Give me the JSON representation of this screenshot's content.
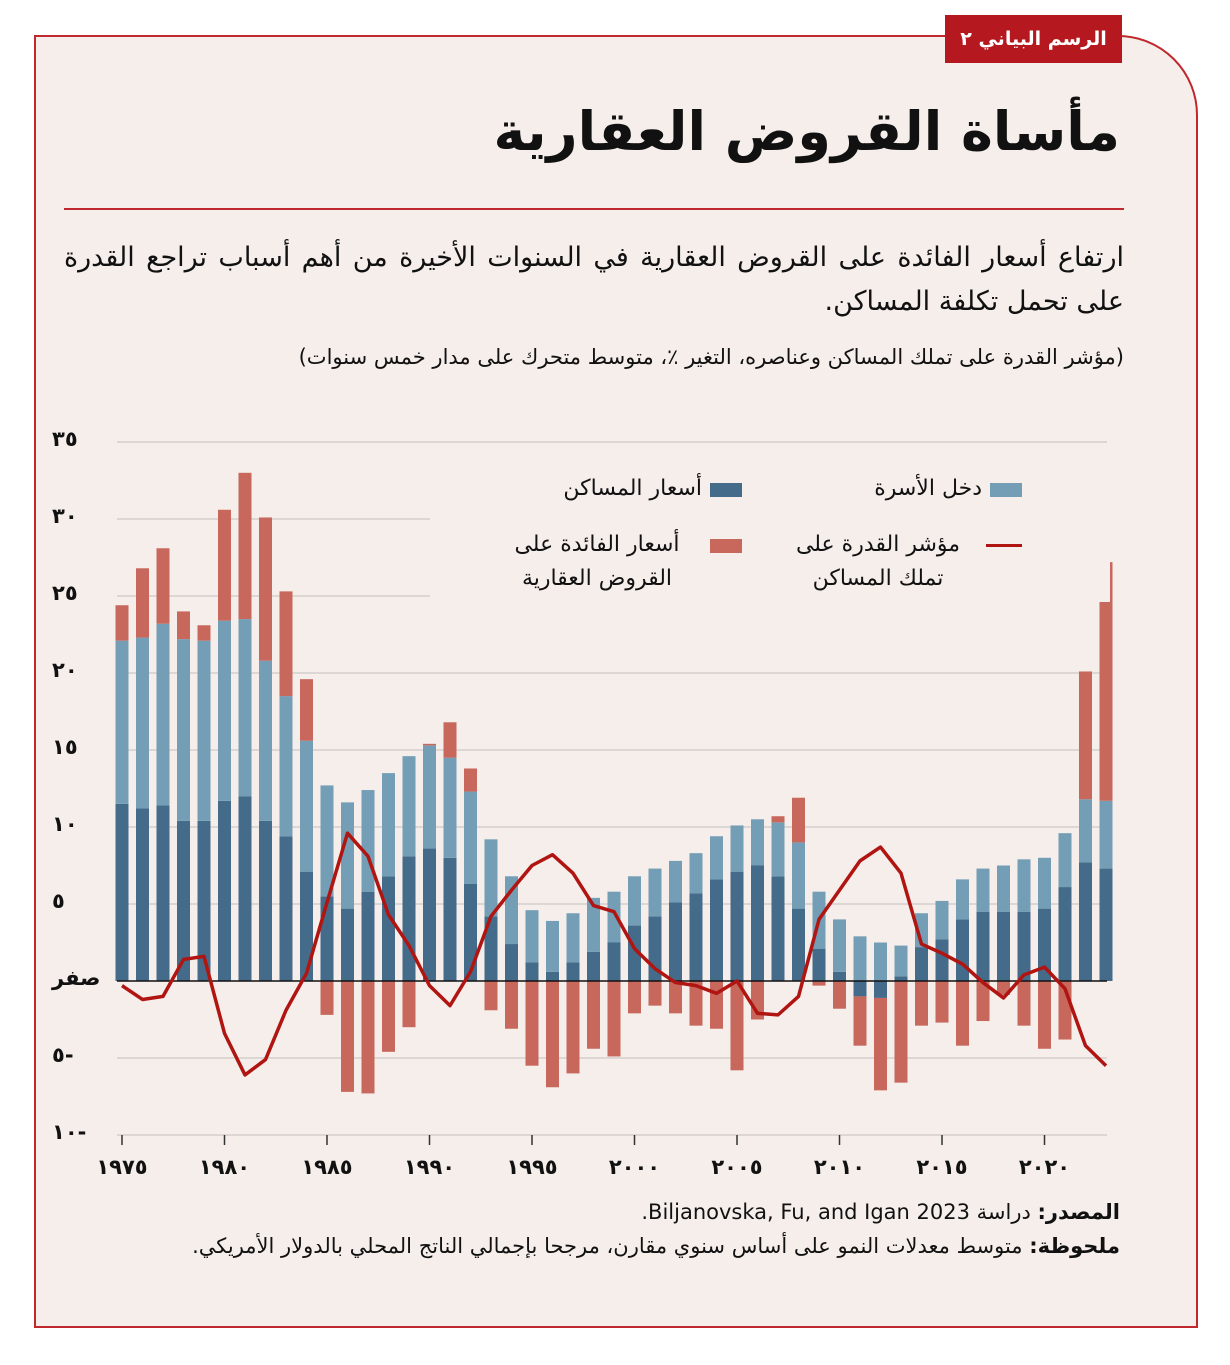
{
  "badge": "الرسم البياني ٢",
  "title": "مأساة القروض العقارية",
  "subtitle": "ارتفاع أسعار الفائدة على القروض العقارية في السنوات الأخيرة من أهم أسباب تراجع القدرة على تحمل تكلفة المساكن.",
  "unit_note": "(مؤشر القدرة على تملك المساكن وعناصره، التغير ٪، متوسط متحرك على مدار خمس سنوات)",
  "source_label": "المصدر:",
  "source_text": " دراسة Biljanovska, Fu, and Igan 2023.",
  "note_label": "ملحوظة:",
  "note_text": " متوسط معدلات النمو على أساس سنوي مقارن، مرجحا بإجمالي الناتج المحلي بالدولار الأمريكي.",
  "colors": {
    "house_prices": "#446b8a",
    "household_income": "#749eb5",
    "mortgage_rates": "#c8685c",
    "affordability": "#b01512",
    "frame": "#c0282d",
    "background": "#f5eeeb"
  },
  "chart_data": {
    "type": "bar",
    "stacked": true,
    "title": "مأساة القروض العقارية",
    "ylim": [
      -10,
      35
    ],
    "yticks": [
      35,
      30,
      25,
      20,
      15,
      10,
      5,
      0,
      -5,
      -10
    ],
    "ytick_labels": [
      "٣٥",
      "٣٠",
      "٢٥",
      "٢٠",
      "١٥",
      "١٠",
      "٥",
      "صفر",
      "٥-",
      "١٠-"
    ],
    "xticks": [
      1975,
      1980,
      1985,
      1990,
      1995,
      2000,
      2005,
      2010,
      2015,
      2020
    ],
    "xtick_labels": [
      "١٩٧٥",
      "١٩٨٠",
      "١٩٨٥",
      "١٩٩٠",
      "١٩٩٥",
      "٢٠٠٠",
      "٢٠٠٥",
      "٢٠١٠",
      "٢٠١٥",
      "٢٠٢٠"
    ],
    "grid": true,
    "legend_placement": "top",
    "x": [
      1975,
      1976,
      1977,
      1978,
      1979,
      1980,
      1981,
      1982,
      1983,
      1984,
      1985,
      1986,
      1987,
      1988,
      1989,
      1990,
      1991,
      1992,
      1993,
      1994,
      1995,
      1996,
      1997,
      1998,
      1999,
      2000,
      2001,
      2002,
      2003,
      2004,
      2005,
      2006,
      2007,
      2008,
      2009,
      2010,
      2011,
      2012,
      2013,
      2014,
      2015,
      2016,
      2017,
      2018,
      2019,
      2020,
      2021,
      2022,
      2023
    ],
    "series": [
      {
        "name": "أسعار المساكن",
        "kind": "bar",
        "color": "#446b8a",
        "values": [
          11.5,
          11.2,
          11.4,
          10.4,
          10.4,
          11.7,
          12.0,
          10.4,
          9.4,
          7.1,
          5.5,
          4.7,
          5.8,
          6.8,
          8.1,
          8.6,
          8.0,
          6.3,
          4.2,
          2.4,
          1.2,
          0.6,
          1.2,
          1.9,
          2.5,
          3.6,
          4.2,
          5.1,
          5.7,
          6.6,
          7.1,
          7.5,
          6.8,
          4.7,
          2.1,
          0.6,
          -1.0,
          -1.1,
          0.3,
          2.2,
          2.7,
          4.0,
          4.5,
          4.5,
          4.5,
          4.7,
          6.1,
          7.7,
          7.3
        ]
      },
      {
        "name": "دخل الأسرة",
        "kind": "bar",
        "color": "#749eb5",
        "values": [
          10.6,
          11.1,
          11.8,
          11.8,
          11.7,
          11.7,
          11.5,
          10.4,
          9.1,
          8.5,
          7.2,
          6.9,
          6.6,
          6.7,
          6.5,
          6.7,
          6.5,
          6.0,
          5.0,
          4.4,
          3.4,
          3.3,
          3.2,
          3.5,
          3.3,
          3.2,
          3.1,
          2.7,
          2.6,
          2.8,
          3.0,
          3.0,
          3.5,
          4.3,
          3.7,
          3.4,
          2.9,
          2.5,
          2.0,
          2.2,
          2.5,
          2.6,
          2.8,
          3.0,
          3.4,
          3.3,
          3.5,
          4.1,
          4.4
        ]
      },
      {
        "name": "أسعار الفائدة على القروض العقارية",
        "kind": "bar",
        "color": "#c8685c",
        "values": [
          2.3,
          4.5,
          4.9,
          1.8,
          1.0,
          7.2,
          9.5,
          9.3,
          6.8,
          4.0,
          -2.2,
          -7.2,
          -7.3,
          -4.6,
          -3.0,
          0.1,
          2.3,
          1.5,
          -1.9,
          -3.1,
          -5.5,
          -6.9,
          -6.0,
          -4.4,
          -4.9,
          -2.1,
          -1.6,
          -2.1,
          -2.9,
          -3.1,
          -5.8,
          -2.5,
          0.4,
          2.9,
          -0.3,
          -1.8,
          -3.2,
          -6.0,
          -6.6,
          -2.9,
          -2.7,
          -4.2,
          -2.6,
          -0.9,
          -2.9,
          -4.4,
          -3.8,
          8.3,
          15.5
        ]
      },
      {
        "name": "مؤشر القدرة على تملك المساكن",
        "kind": "line",
        "color": "#b01512",
        "values": [
          -0.3,
          -1.2,
          -1.0,
          1.4,
          1.6,
          -3.4,
          -6.1,
          -5.1,
          -1.9,
          0.5,
          5.1,
          9.6,
          8.1,
          4.3,
          2.3,
          -0.3,
          -1.6,
          0.6,
          4.2,
          5.9,
          7.5,
          8.2,
          7.0,
          4.9,
          4.5,
          2.1,
          0.8,
          -0.1,
          -0.3,
          -0.8,
          0.0,
          -2.1,
          -2.2,
          -1.0,
          4.0,
          5.9,
          7.8,
          8.7,
          7.0,
          2.4,
          1.8,
          1.1,
          -0.1,
          -1.1,
          0.4,
          0.9,
          -0.5,
          -4.2,
          -5.5
        ]
      }
    ],
    "legend": [
      {
        "label": "دخل الأسرة",
        "kind": "bar"
      },
      {
        "label": "أسعار المساكن",
        "kind": "bar"
      },
      {
        "label": "مؤشر القدرة على تملك المساكن",
        "kind": "line"
      },
      {
        "label": "أسعار الفائدة على القروض العقارية",
        "kind": "bar"
      }
    ]
  }
}
